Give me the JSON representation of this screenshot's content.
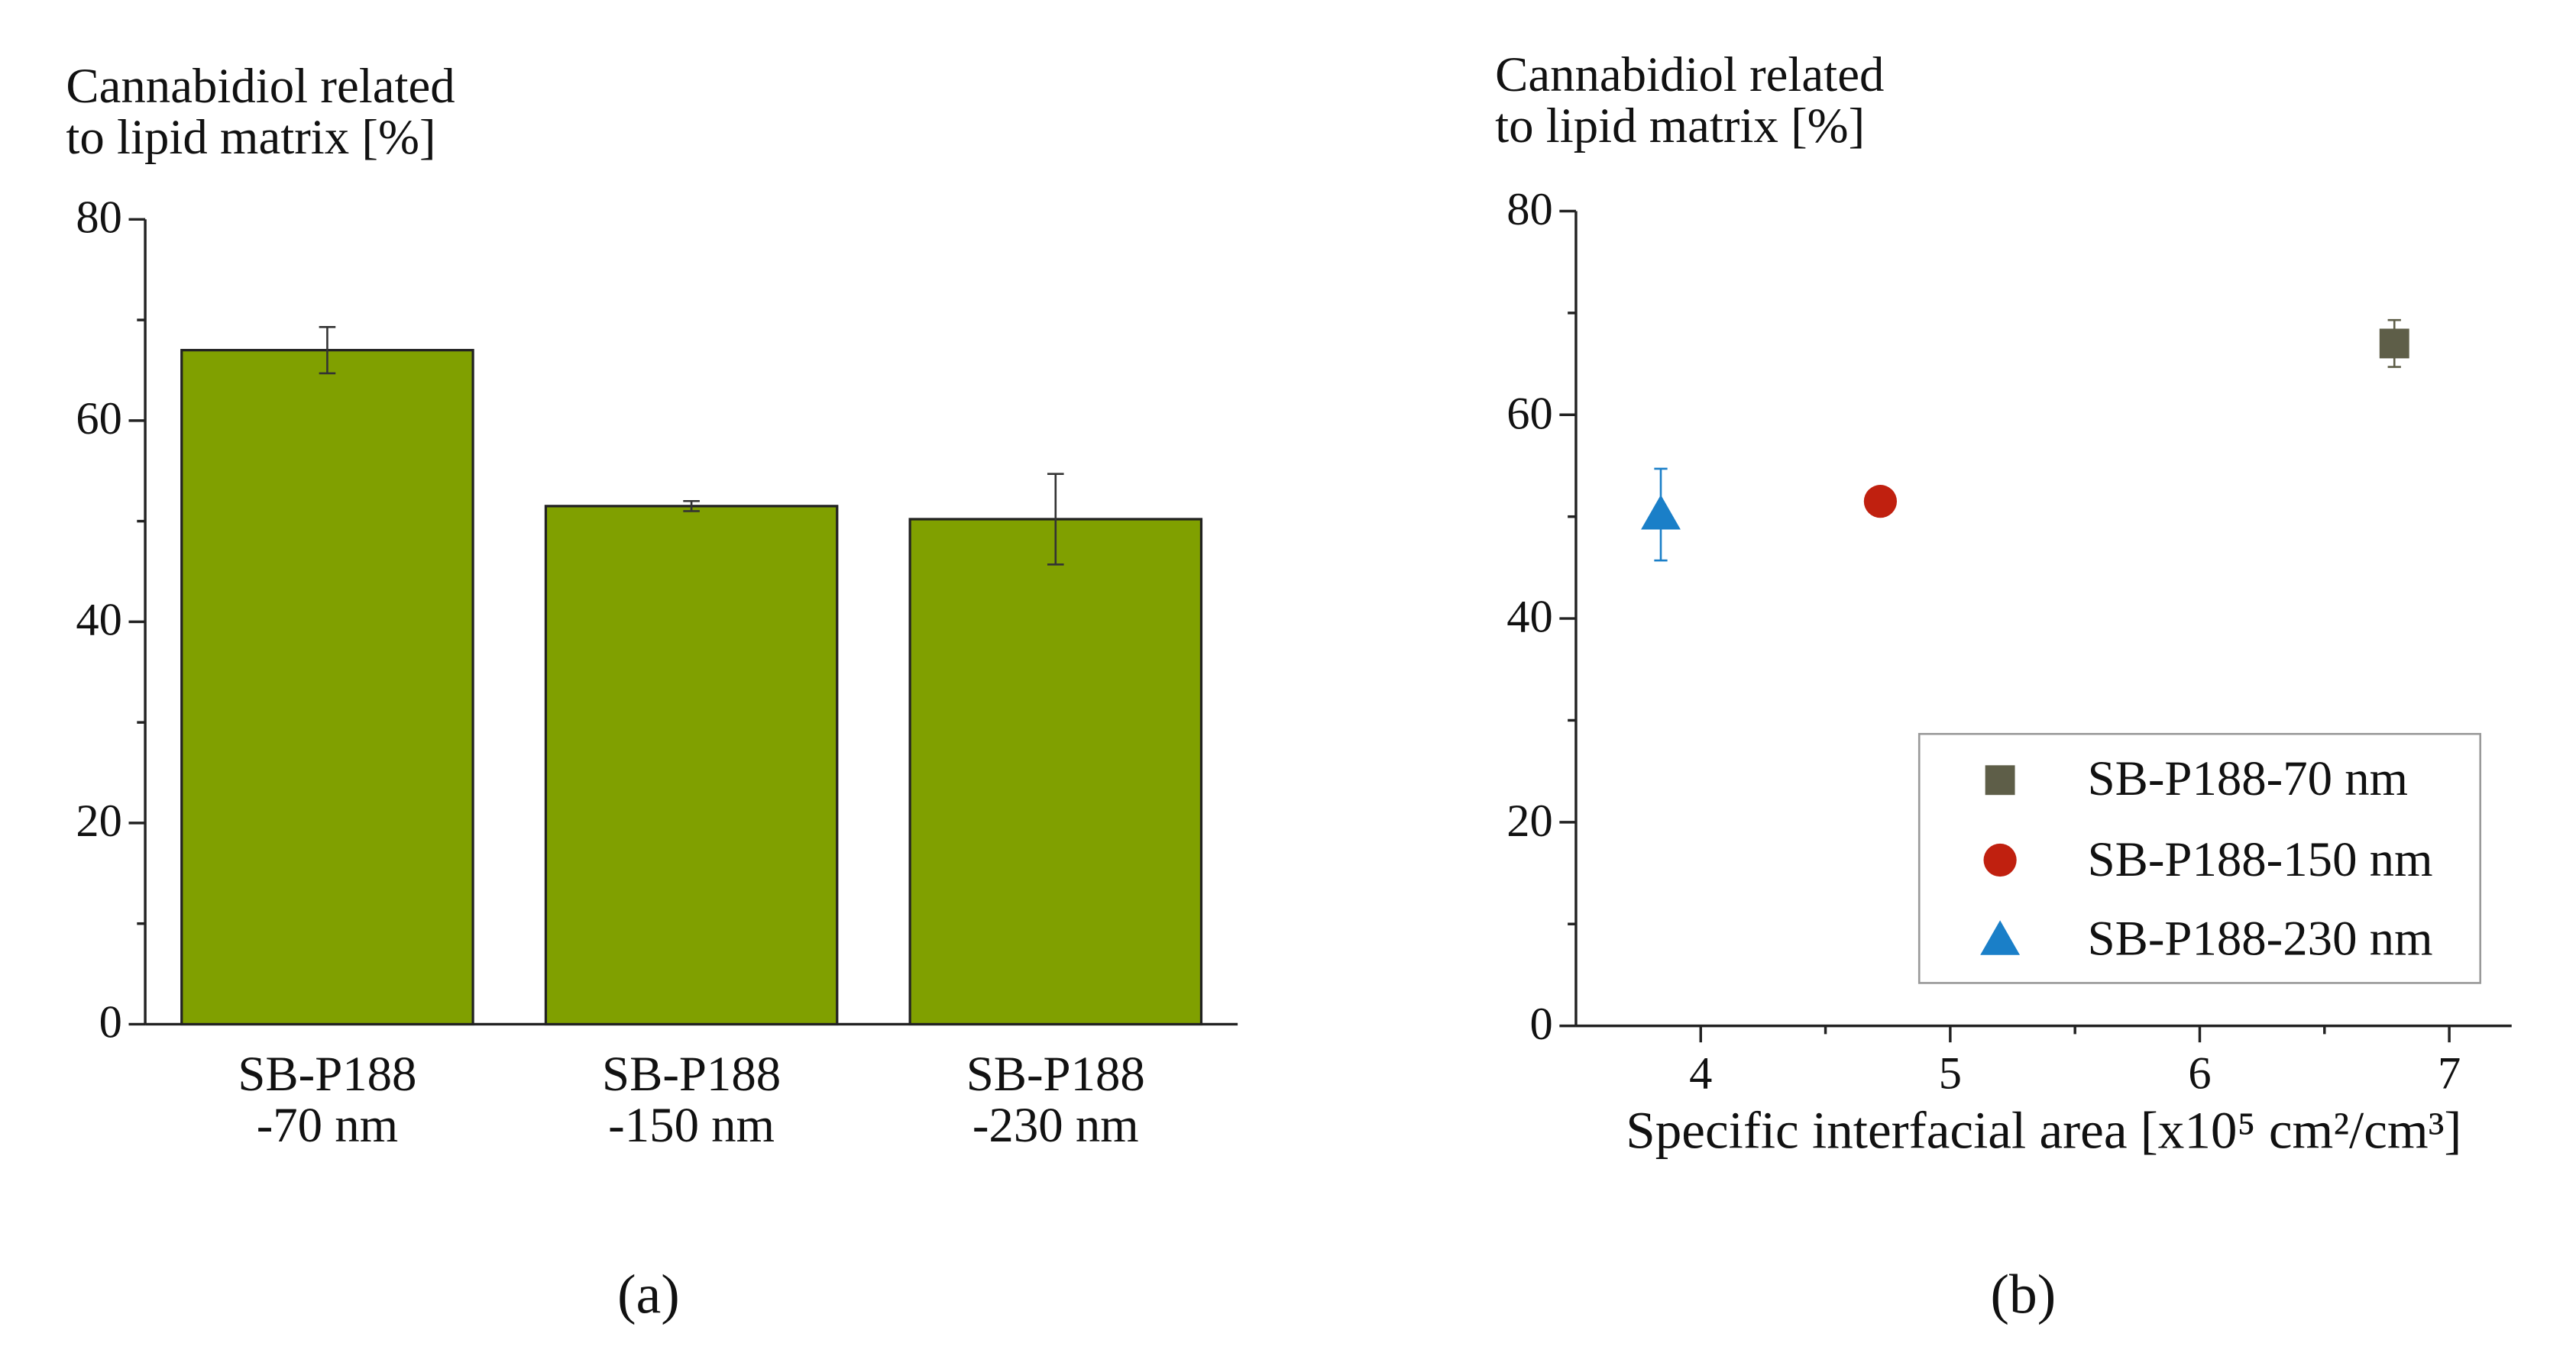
{
  "chart_data": [
    {
      "type": "bar",
      "panel_label": "(a)",
      "y_label": "Cannabidiol related\nto lipid matrix [%]",
      "categories": [
        "SB-P188\n-70 nm",
        "SB-P188\n-150 nm",
        "SB-P188\n-230 nm"
      ],
      "values": [
        67,
        51.5,
        50.2
      ],
      "errors": [
        2.3,
        0.5,
        4.5
      ],
      "color": "#80a000",
      "ylim": [
        0,
        80
      ],
      "yticks": [
        0,
        20,
        40,
        60,
        80
      ]
    },
    {
      "type": "scatter",
      "panel_label": "(b)",
      "y_label": "Cannabidiol related\nto lipid matrix [%]",
      "x_label": "Specific interfacial area [x10⁵ cm²/cm³]",
      "series": [
        {
          "name": "SB-P188-70 nm",
          "color": "#5e5e48",
          "marker": "square",
          "x": [
            6.78
          ],
          "values": [
            67
          ],
          "errors": [
            2.3
          ]
        },
        {
          "name": "SB-P188-150 nm",
          "color": "#c0200f",
          "marker": "circle",
          "x": [
            4.72
          ],
          "values": [
            51.5
          ],
          "errors": [
            0.5
          ]
        },
        {
          "name": "SB-P188-230 nm",
          "color": "#1a7fc8",
          "marker": "triangle",
          "x": [
            3.84
          ],
          "values": [
            50.2
          ],
          "errors": [
            4.5
          ]
        }
      ],
      "xlim": [
        3.5,
        7.25
      ],
      "xticks": [
        4,
        5,
        6,
        7
      ],
      "ylim": [
        0,
        80
      ],
      "yticks": [
        0,
        20,
        40,
        60,
        80
      ],
      "legend": "lower right"
    }
  ]
}
